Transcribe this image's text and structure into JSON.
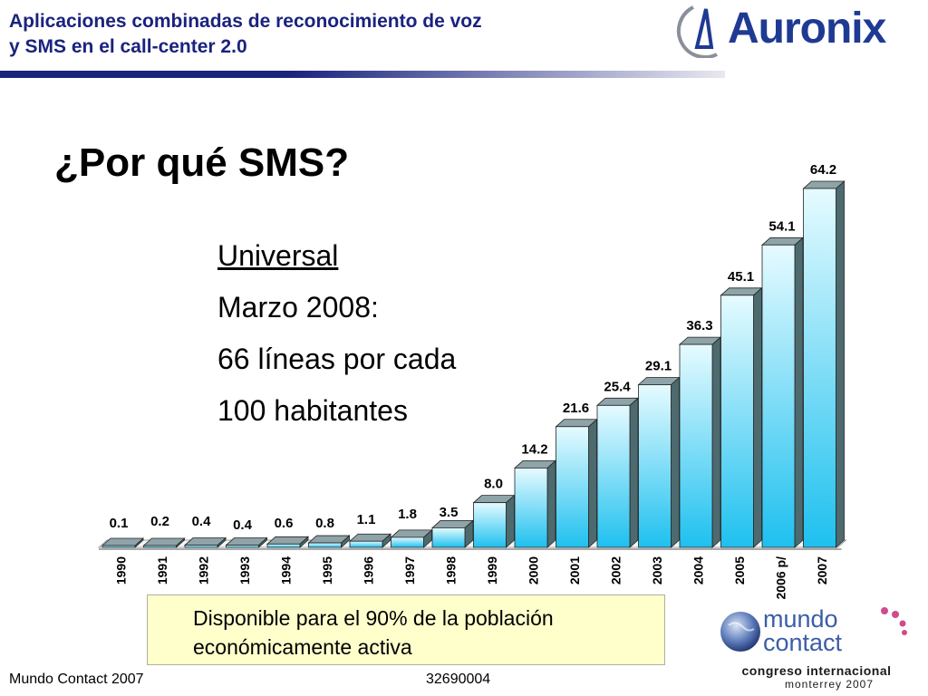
{
  "header": {
    "title_line1": "Aplicaciones combinadas de reconocimiento de voz",
    "title_line2": "y SMS en el call-center 2.0",
    "logo_text": "Auronix"
  },
  "slide": {
    "title": "¿Por qué SMS?",
    "bullets": [
      "Universal",
      "Marzo 2008:",
      "66 líneas por cada",
      "100 habitantes"
    ]
  },
  "callout": {
    "line1": "Disponible para el 90% de la población",
    "line2": "económicamente activa"
  },
  "footer": {
    "left": "Mundo Contact 2007",
    "center": "32690004"
  },
  "event_logo": {
    "line1": "mundo",
    "line2": "contact",
    "congreso": "congreso internacional",
    "city": "monterrey 2007"
  },
  "colors": {
    "header_blue": "#1a237e",
    "bar_front_top": "#e6fbff",
    "bar_front_bottom": "#1ec0ef",
    "bar_side": "#4d6a6f",
    "callout_bg": "#ffffcc"
  },
  "chart_data": {
    "type": "bar",
    "title": "",
    "xlabel": "",
    "ylabel": "",
    "categories": [
      "1990",
      "1991",
      "1992",
      "1993",
      "1994",
      "1995",
      "1996",
      "1997",
      "1998",
      "1999",
      "2000",
      "2001",
      "2002",
      "2003",
      "2004",
      "2005",
      "2006 p/",
      "2007"
    ],
    "values": [
      0.1,
      0.2,
      0.4,
      0.4,
      0.6,
      0.8,
      1.1,
      1.8,
      3.5,
      8.0,
      14.2,
      21.6,
      25.4,
      29.1,
      36.3,
      45.1,
      54.1,
      64.2
    ],
    "value_labels": [
      "0.1",
      "0.2",
      "0.4",
      "0.4",
      "0.6",
      "0.8",
      "1.1",
      "1.8",
      "3.5",
      "8.0",
      "14.2",
      "21.6",
      "25.4",
      "29.1",
      "36.3",
      "45.1",
      "54.1",
      "64.2"
    ],
    "ylim": [
      0,
      64.2
    ],
    "grid": false,
    "style": "3d-bars"
  }
}
